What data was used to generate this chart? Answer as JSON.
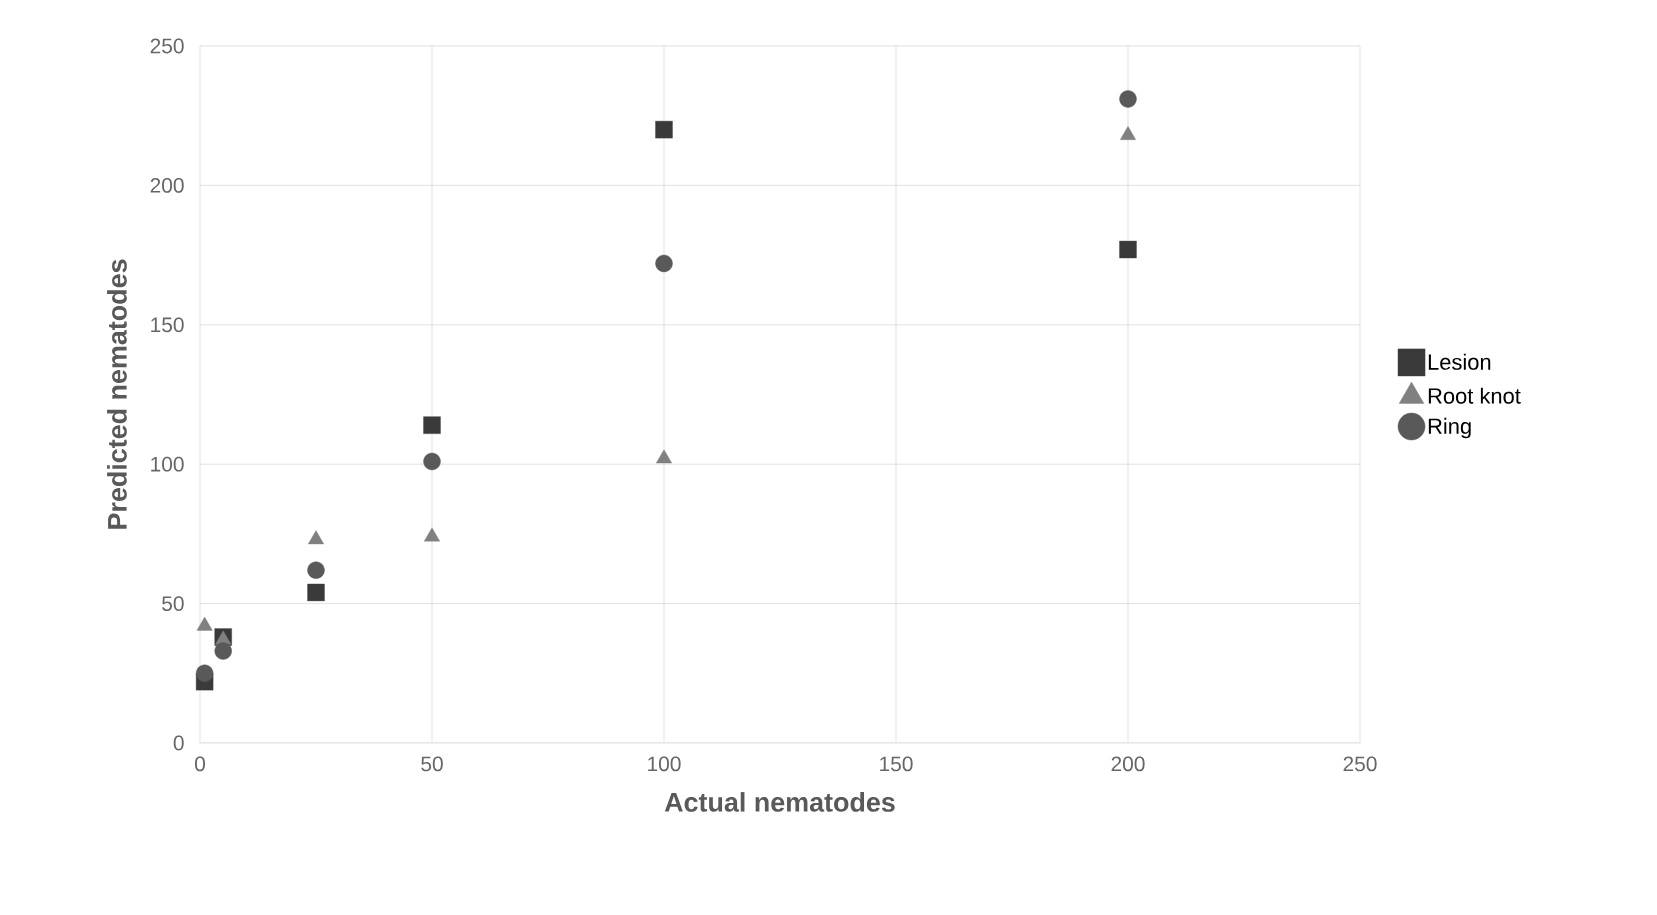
{
  "chart_data": {
    "type": "scatter",
    "xlabel": "Actual nematodes",
    "ylabel": "Predicted nematodes",
    "series": [
      {
        "name": "Lesion",
        "color": "#3a3a3a",
        "marker": "square",
        "x": [
          1,
          5,
          25,
          50,
          100,
          200
        ],
        "values": [
          22,
          38,
          54,
          114,
          220,
          177
        ]
      },
      {
        "name": "Root knot",
        "color": "#808080",
        "marker": "triangle",
        "x": [
          1,
          5,
          25,
          50,
          100,
          200
        ],
        "values": [
          42,
          37,
          73,
          74,
          102,
          218
        ]
      },
      {
        "name": "Ring",
        "color": "#595959",
        "marker": "circle",
        "x": [
          1,
          5,
          25,
          50,
          100,
          200
        ],
        "values": [
          25,
          33,
          62,
          101,
          172,
          231
        ]
      }
    ],
    "xlim": [
      0,
      250
    ],
    "xticks": [
      0,
      50,
      100,
      150,
      200,
      250
    ],
    "ylim": [
      0,
      250
    ],
    "yticks": [
      0,
      50,
      100,
      150,
      200,
      250
    ],
    "grid": true,
    "legend": "right"
  }
}
